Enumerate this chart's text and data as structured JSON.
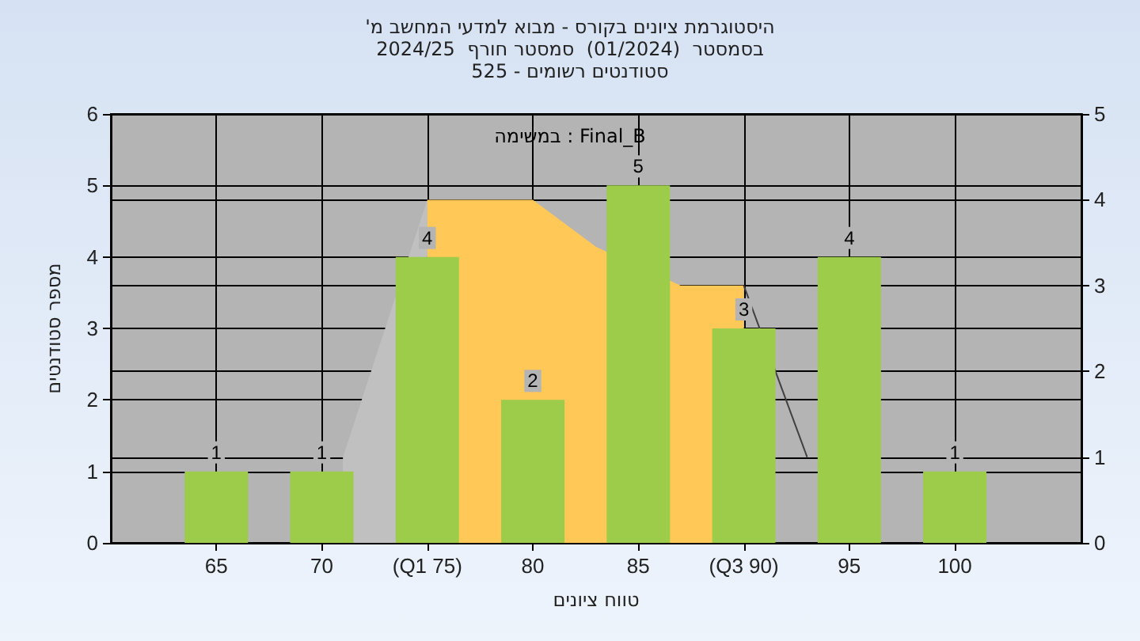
{
  "chart_data": {
    "type": "bar",
    "title": "'היסטוגרמת ציונים בקורס - מבוא למדעי המחשב מ",
    "subtitle": "בסמסטר  (01/2024)  סמסטר חורף  2024/25\n525 - סטודנטים רשומים",
    "annotations": [
      "במשימה : Final_B"
    ],
    "xlabel": "טווח ציונים",
    "ylabel": "מספר סטודנטים",
    "x": [
      65,
      70,
      75,
      80,
      85,
      90,
      95,
      100
    ],
    "xlim": [
      60,
      106
    ],
    "xticks": [
      65,
      70,
      {
        "value": 75,
        "label": "(Q1 75)"
      },
      80,
      85,
      {
        "value": 90,
        "label": "(Q3 90)"
      },
      95,
      100
    ],
    "ylim": [
      0,
      6
    ],
    "yticks": [
      0,
      1,
      2,
      3,
      4,
      5,
      6
    ],
    "y2lim": [
      0,
      5
    ],
    "y2ticks": [
      0,
      1,
      2,
      3,
      4,
      5
    ],
    "series": [
      {
        "type": "area",
        "axis": "y2",
        "color": "#c0c0c0",
        "x": [
          71,
          75
        ],
        "values": [
          1,
          4
        ]
      },
      {
        "type": "area",
        "axis": "y2",
        "color": "#ffc857",
        "x": [
          75,
          80,
          83,
          87,
          90
        ],
        "values": [
          4,
          4,
          3.45,
          3,
          3
        ]
      },
      {
        "type": "line",
        "axis": "y2",
        "color": "#404040",
        "x": [
          90,
          93
        ],
        "values": [
          3,
          1
        ]
      },
      {
        "color": "#9ccc4a",
        "values": [
          1,
          1,
          4,
          2,
          5,
          3,
          4,
          1
        ],
        "value_labels": [
          "1",
          "1",
          "4",
          "2",
          "5",
          "3",
          "4",
          "1"
        ]
      }
    ],
    "grid": true,
    "marker": "none"
  }
}
